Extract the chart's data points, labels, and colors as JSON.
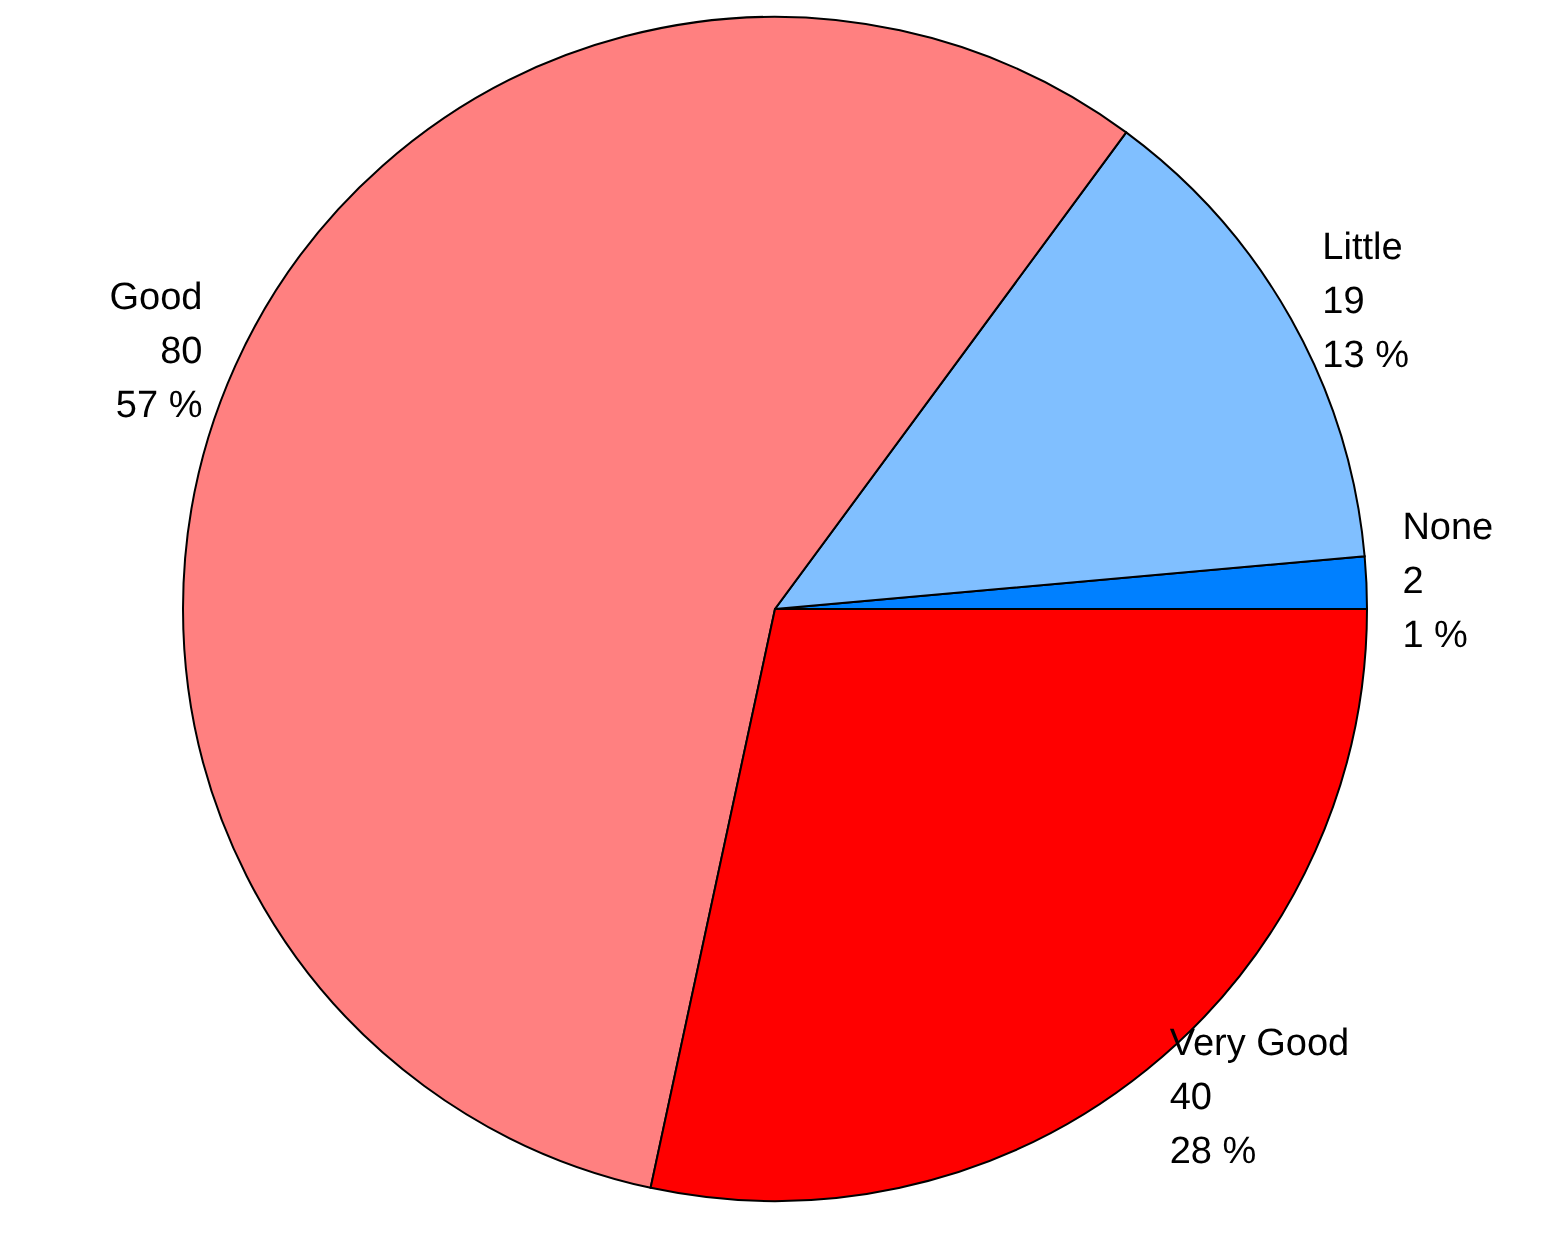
{
  "chart_data": {
    "type": "pie",
    "categories": [
      "None",
      "Little",
      "Good",
      "Very Good"
    ],
    "values": [
      2,
      19,
      80,
      40
    ],
    "colors": [
      "#0080ff",
      "#80bfff",
      "#ff8080",
      "#ff0000"
    ],
    "value_labels": [
      "2\n1 %",
      "19\n13 %",
      "80\n57 %",
      "40\n28 %"
    ]
  }
}
